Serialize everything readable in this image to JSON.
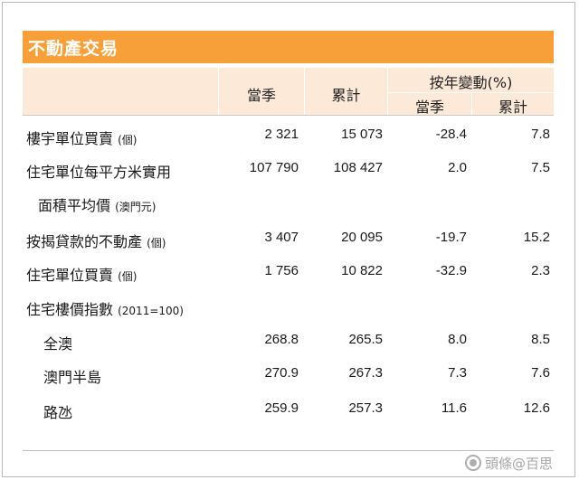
{
  "title": "不動產交易",
  "header": {
    "col_quarter": "當季",
    "col_cumulative": "累計",
    "col_yoy_group": "按年變動(%)",
    "col_yoy_quarter": "當季",
    "col_yoy_cumulative": "累計"
  },
  "rows": [
    {
      "label": "樓宇單位買賣",
      "unit": "(個)",
      "q": "2 321",
      "c": "15 073",
      "yq": "-28.4",
      "yc": "7.8"
    },
    {
      "label": "住宅單位每平方米實用",
      "unit": "",
      "q": "107 790",
      "c": "108 427",
      "yq": "2.0",
      "yc": "7.5"
    },
    {
      "label": "面積平均價",
      "unit": "(澳門元)",
      "q": "",
      "c": "",
      "yq": "",
      "yc": ""
    },
    {
      "label": "按揭貸款的不動產",
      "unit": "(個)",
      "q": "3 407",
      "c": "20 095",
      "yq": "-19.7",
      "yc": "15.2"
    },
    {
      "label": "住宅單位買賣",
      "unit": "(個)",
      "q": "1 756",
      "c": "10 822",
      "yq": "-32.9",
      "yc": "2.3"
    },
    {
      "label": "住宅樓價指數",
      "unit": "(2011=100)",
      "q": "",
      "c": "",
      "yq": "",
      "yc": ""
    },
    {
      "label": "全澳",
      "unit": "",
      "q": "268.8",
      "c": "265.5",
      "yq": "8.0",
      "yc": "8.5"
    },
    {
      "label": "澳門半島",
      "unit": "",
      "q": "270.9",
      "c": "267.3",
      "yq": "7.3",
      "yc": "7.6"
    },
    {
      "label": "路氹",
      "unit": "",
      "q": "259.9",
      "c": "257.3",
      "yq": "11.6",
      "yc": "12.6"
    }
  ],
  "watermark": "頭條@百思"
}
